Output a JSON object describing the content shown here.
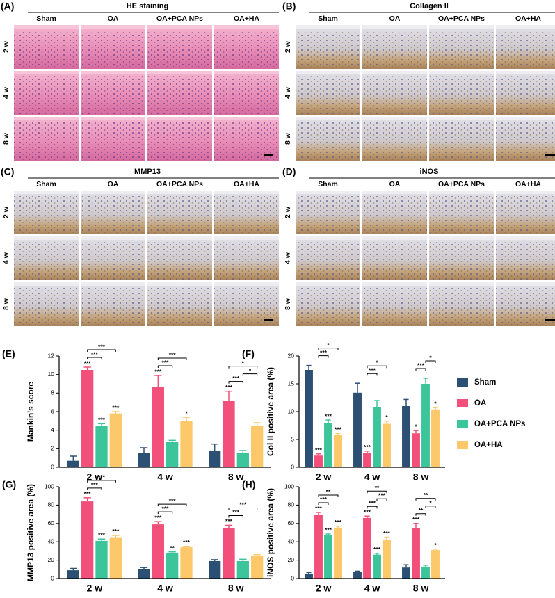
{
  "histology": [
    {
      "label": "(A)",
      "title": "HE staining",
      "stain": "he",
      "columns": [
        "Sham",
        "OA",
        "OA+PCA NPs",
        "OA+HA"
      ],
      "rows": [
        "2 w",
        "4 w",
        "8 w"
      ]
    },
    {
      "label": "(B)",
      "title": "Collagen II",
      "stain": "ihc",
      "columns": [
        "Sham",
        "OA",
        "OA+PCA NPs",
        "OA+HA"
      ],
      "rows": [
        "2 w",
        "4 w",
        "8 w"
      ]
    },
    {
      "label": "(C)",
      "title": "MMP13",
      "stain": "ihc",
      "columns": [
        "Sham",
        "OA",
        "OA+PCA NPs",
        "OA+HA"
      ],
      "rows": [
        "2 w",
        "4 w",
        "8 w"
      ]
    },
    {
      "label": "(D)",
      "title": "iNOS",
      "stain": "ihc",
      "columns": [
        "Sham",
        "OA",
        "OA+PCA NPs",
        "OA+HA"
      ],
      "rows": [
        "2 w",
        "4 w",
        "8 w"
      ]
    }
  ],
  "chart_data": [
    {
      "type": "bar",
      "panel_label": "(E)",
      "y_label": "Mankin's score",
      "categories": [
        "2 w",
        "4 w",
        "8 w"
      ],
      "ylim": [
        0,
        12
      ],
      "yticks": [
        0,
        2,
        4,
        6,
        8,
        10,
        12
      ],
      "series": [
        {
          "color": "#2c4f74",
          "values": [
            0.7,
            1.5,
            1.8
          ],
          "errors": [
            0.5,
            0.6,
            0.7
          ]
        },
        {
          "color": "#f2507a",
          "values": [
            10.5,
            8.7,
            7.2
          ],
          "errors": [
            0.3,
            1.2,
            1.0
          ]
        },
        {
          "color": "#3cc59a",
          "values": [
            4.5,
            2.7,
            1.5
          ],
          "errors": [
            0.2,
            0.2,
            0.3
          ]
        },
        {
          "color": "#fcc86a",
          "values": [
            5.8,
            5.0,
            4.5
          ],
          "errors": [
            0.2,
            0.4,
            0.3
          ]
        }
      ],
      "annotations": [
        {
          "text": "***",
          "category": 0,
          "series": 1
        },
        {
          "text": "***",
          "category": 0,
          "series": 2
        },
        {
          "text": "***",
          "category": 0,
          "series": 3
        },
        {
          "text": "***",
          "category": 1,
          "series": 1
        },
        {
          "text": "*",
          "category": 1,
          "series": 3
        },
        {
          "text": "***",
          "category": 2,
          "series": 1
        }
      ],
      "brackets": [
        {
          "text": "***",
          "category": 0,
          "series": [
            1,
            2
          ]
        },
        {
          "text": "***",
          "category": 0,
          "series": [
            1,
            3
          ]
        },
        {
          "text": "***",
          "category": 1,
          "series": [
            1,
            2
          ]
        },
        {
          "text": "***",
          "category": 1,
          "series": [
            1,
            3
          ]
        },
        {
          "text": "***",
          "category": 2,
          "series": [
            1,
            2
          ]
        },
        {
          "text": "*",
          "category": 2,
          "series": [
            2,
            3
          ]
        },
        {
          "text": "*",
          "category": 2,
          "series": [
            1,
            3
          ]
        }
      ]
    },
    {
      "type": "bar",
      "panel_label": "(F)",
      "y_label": "Col II positive area (%)",
      "categories": [
        "2 w",
        "4 w",
        "8 w"
      ],
      "ylim": [
        0,
        20
      ],
      "yticks": [
        0,
        5,
        10,
        15,
        20
      ],
      "legend": "right",
      "series": [
        {
          "name": "Sham",
          "color": "#2c4f74",
          "values": [
            17.5,
            13.4,
            11.0
          ],
          "errors": [
            0.8,
            1.7,
            1.2
          ]
        },
        {
          "name": "OA",
          "color": "#f2507a",
          "values": [
            2.1,
            2.6,
            6.1
          ],
          "errors": [
            0.3,
            0.3,
            0.5
          ]
        },
        {
          "name": "OA+PCA NPs",
          "color": "#3cc59a",
          "values": [
            8.0,
            10.8,
            15.0
          ],
          "errors": [
            0.5,
            1.2,
            1.0
          ]
        },
        {
          "name": "OA+HA",
          "color": "#fcc86a",
          "values": [
            5.8,
            7.8,
            10.4
          ],
          "errors": [
            0.3,
            0.5,
            0.3
          ]
        }
      ],
      "annotations": [
        {
          "text": "***",
          "category": 0,
          "series": 1
        },
        {
          "text": "***",
          "category": 0,
          "series": 2
        },
        {
          "text": "***",
          "category": 0,
          "series": 3
        },
        {
          "text": "***",
          "category": 1,
          "series": 1
        },
        {
          "text": "*",
          "category": 1,
          "series": 3
        },
        {
          "text": "*",
          "category": 2,
          "series": 1
        },
        {
          "text": "*",
          "category": 2,
          "series": 3
        }
      ],
      "brackets": [
        {
          "text": "***",
          "category": 0,
          "series": [
            1,
            2
          ]
        },
        {
          "text": "*",
          "category": 0,
          "series": [
            1,
            3
          ]
        },
        {
          "text": "***",
          "category": 1,
          "series": [
            1,
            2
          ]
        },
        {
          "text": "*",
          "category": 1,
          "series": [
            1,
            3
          ]
        },
        {
          "text": "***",
          "category": 2,
          "series": [
            1,
            2
          ]
        },
        {
          "text": "*",
          "category": 2,
          "series": [
            2,
            3
          ]
        }
      ]
    },
    {
      "type": "bar",
      "panel_label": "(G)",
      "y_label": "MMP13 positive area (%)",
      "categories": [
        "2 w",
        "4 w",
        "8 w"
      ],
      "ylim": [
        0,
        100
      ],
      "yticks": [
        0,
        20,
        40,
        60,
        80,
        100
      ],
      "series": [
        {
          "color": "#2c4f74",
          "values": [
            9,
            10,
            19
          ],
          "errors": [
            2,
            2,
            1.5
          ]
        },
        {
          "color": "#f2507a",
          "values": [
            84,
            59,
            55
          ],
          "errors": [
            4,
            3,
            3
          ]
        },
        {
          "color": "#3cc59a",
          "values": [
            41,
            28,
            19
          ],
          "errors": [
            2,
            1,
            2
          ]
        },
        {
          "color": "#fcc86a",
          "values": [
            45,
            34,
            25
          ],
          "errors": [
            2,
            1,
            1
          ]
        }
      ],
      "annotations": [
        {
          "text": "***",
          "category": 0,
          "series": 1
        },
        {
          "text": "***",
          "category": 0,
          "series": 2
        },
        {
          "text": "***",
          "category": 0,
          "series": 3
        },
        {
          "text": "***",
          "category": 1,
          "series": 1
        },
        {
          "text": "**",
          "category": 1,
          "series": 2
        },
        {
          "text": "***",
          "category": 1,
          "series": 3
        },
        {
          "text": "***",
          "category": 2,
          "series": 1
        }
      ],
      "brackets": [
        {
          "text": "***",
          "category": 0,
          "series": [
            1,
            2
          ]
        },
        {
          "text": "***",
          "category": 0,
          "series": [
            1,
            3
          ]
        },
        {
          "text": "***",
          "category": 1,
          "series": [
            1,
            2
          ]
        },
        {
          "text": "***",
          "category": 1,
          "series": [
            1,
            3
          ]
        },
        {
          "text": "***",
          "category": 2,
          "series": [
            1,
            2
          ]
        },
        {
          "text": "***",
          "category": 2,
          "series": [
            1,
            3
          ]
        }
      ]
    },
    {
      "type": "bar",
      "panel_label": "(H)",
      "y_label": "iNOS positive area (%)",
      "categories": [
        "2 w",
        "4 w",
        "8 w"
      ],
      "ylim": [
        0,
        100
      ],
      "yticks": [
        0,
        20,
        40,
        60,
        80,
        100
      ],
      "series": [
        {
          "color": "#2c4f74",
          "values": [
            5,
            7,
            12
          ],
          "errors": [
            1.5,
            1,
            3
          ]
        },
        {
          "color": "#f2507a",
          "values": [
            69,
            66,
            55
          ],
          "errors": [
            3,
            2,
            5
          ]
        },
        {
          "color": "#3cc59a",
          "values": [
            47,
            26,
            13
          ],
          "errors": [
            1.5,
            1.5,
            1.5
          ]
        },
        {
          "color": "#fcc86a",
          "values": [
            55,
            42,
            31
          ],
          "errors": [
            2,
            3,
            1
          ]
        }
      ],
      "annotations": [
        {
          "text": "***",
          "category": 0,
          "series": 1
        },
        {
          "text": "***",
          "category": 0,
          "series": 2
        },
        {
          "text": "***",
          "category": 0,
          "series": 3
        },
        {
          "text": "***",
          "category": 1,
          "series": 1
        },
        {
          "text": "***",
          "category": 1,
          "series": 2
        },
        {
          "text": "***",
          "category": 1,
          "series": 3
        },
        {
          "text": "***",
          "category": 2,
          "series": 1
        },
        {
          "text": "*",
          "category": 2,
          "series": 3
        }
      ],
      "brackets": [
        {
          "text": "***",
          "category": 0,
          "series": [
            1,
            2
          ]
        },
        {
          "text": "**",
          "category": 0,
          "series": [
            1,
            3
          ]
        },
        {
          "text": "***",
          "category": 1,
          "series": [
            1,
            2
          ]
        },
        {
          "text": "***",
          "category": 1,
          "series": [
            2,
            3
          ]
        },
        {
          "text": "**",
          "category": 1,
          "series": [
            1,
            3
          ]
        },
        {
          "text": "**",
          "category": 2,
          "series": [
            1,
            2
          ]
        },
        {
          "text": "*",
          "category": 2,
          "series": [
            2,
            3
          ]
        },
        {
          "text": "**",
          "category": 2,
          "series": [
            1,
            3
          ]
        }
      ]
    }
  ]
}
